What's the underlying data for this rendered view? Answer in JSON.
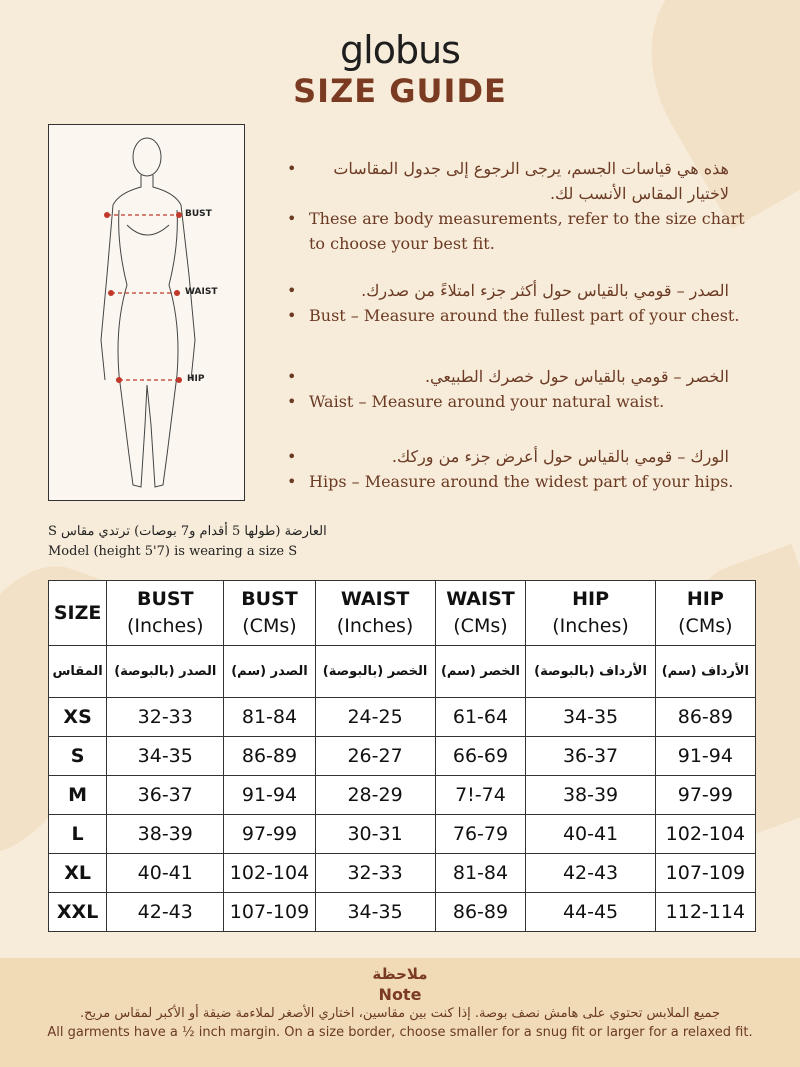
{
  "brand": "globus",
  "title": "SIZE GUIDE",
  "figure": {
    "labels": {
      "bust": "BUST",
      "waist": "WAIST",
      "hip": "HIP"
    }
  },
  "instructions": [
    {
      "ar": "هذه هي قياسات الجسم، يرجى الرجوع إلى جدول المقاسات لاختيار المقاس الأنسب لك.",
      "en": "These are body measurements, refer to the size chart to choose your best fit."
    },
    {
      "ar": "الصدر – قومي بالقياس حول أكثر جزء امتلاءً من صدرك.",
      "en": "Bust – Measure around the fullest part of your chest."
    },
    {
      "ar": "الخصر – قومي بالقياس حول خصرك الطبيعي.",
      "en": "Waist – Measure around your natural waist."
    },
    {
      "ar": "الورك – قومي بالقياس حول أعرض جزء من وركك.",
      "en": "Hips – Measure around the widest part of your hips."
    }
  ],
  "model": {
    "ar": "العارضة (طولها 5 أقدام و7 بوصات) ترتدي مقاس S",
    "en": "Model (height 5'7) is wearing a size S"
  },
  "table": {
    "headers": [
      {
        "a": "SIZE",
        "b": ""
      },
      {
        "a": "BUST",
        "b": "(Inches)"
      },
      {
        "a": "BUST",
        "b": "(CMs)"
      },
      {
        "a": "WAIST",
        "b": "(Inches)"
      },
      {
        "a": "WAIST",
        "b": "(CMs)"
      },
      {
        "a": "HIP",
        "b": "(Inches)"
      },
      {
        "a": "HIP",
        "b": "(CMs)"
      }
    ],
    "headers_ar": [
      "المقاس",
      "الصدر (بالبوصة)",
      "الصدر (سم)",
      "الخصر (بالبوصة)",
      "الخصر (سم)",
      "الأرداف (بالبوصة)",
      "الأرداف (سم)"
    ],
    "rows": [
      [
        "XS",
        "32-33",
        "81-84",
        "24-25",
        "61-64",
        "34-35",
        "86-89"
      ],
      [
        "S",
        "34-35",
        "86-89",
        "26-27",
        "66-69",
        "36-37",
        "91-94"
      ],
      [
        "M",
        "36-37",
        "91-94",
        "28-29",
        "7!-74",
        "38-39",
        "97-99"
      ],
      [
        "L",
        "38-39",
        "97-99",
        "30-31",
        "76-79",
        "40-41",
        "102-104"
      ],
      [
        "XL",
        "40-41",
        "102-104",
        "32-33",
        "81-84",
        "42-43",
        "107-109"
      ],
      [
        "XXL",
        "42-43",
        "107-109",
        "34-35",
        "86-89",
        "44-45",
        "112-114"
      ]
    ]
  },
  "note": {
    "title_ar": "ملاحظة",
    "title_en": "Note",
    "ar": "جميع الملابس تحتوي على هامش نصف بوصة. إذا كنت بين مقاسين، اختاري الأصغر لملاءمة ضيقة أو الأكبر لمقاس مريح.",
    "en": "All garments have a ½ inch margin. On a size border, choose smaller for a snug fit or larger for a relaxed fit."
  },
  "colors": {
    "background": "#f7ecd9",
    "accent": "#7a3b22",
    "note_bg": "#f1dbb6",
    "marker": "#c0392b"
  }
}
